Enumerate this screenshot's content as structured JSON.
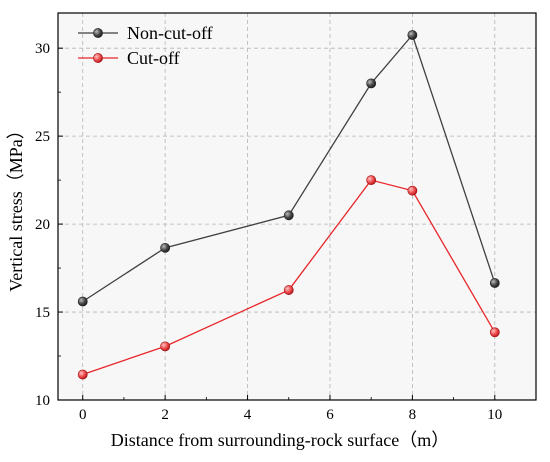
{
  "chart_data": {
    "type": "line",
    "xlabel": "Distance from surrounding-rock surface（m）",
    "ylabel": "Vertical stress（MPa）",
    "xlim": [
      -0.6,
      11.0
    ],
    "ylim": [
      10,
      32
    ],
    "x_ticks": [
      0,
      2,
      4,
      6,
      8,
      10
    ],
    "y_ticks": [
      10,
      15,
      20,
      25,
      30
    ],
    "grid": true,
    "legend_position": "top-left",
    "series": [
      {
        "name": "Non-cut-off",
        "color": "#404040",
        "marker_color": "#4a4a4a",
        "x": [
          0,
          2,
          5,
          7,
          8,
          10
        ],
        "y": [
          15.6,
          18.65,
          20.5,
          28.0,
          30.75,
          16.65
        ]
      },
      {
        "name": "Cut-off",
        "color": "#e8262a",
        "marker_color": "#ef4d4f",
        "x": [
          0,
          2,
          5,
          7,
          8,
          10
        ],
        "y": [
          11.45,
          13.05,
          16.25,
          22.5,
          21.9,
          13.85
        ]
      }
    ]
  }
}
